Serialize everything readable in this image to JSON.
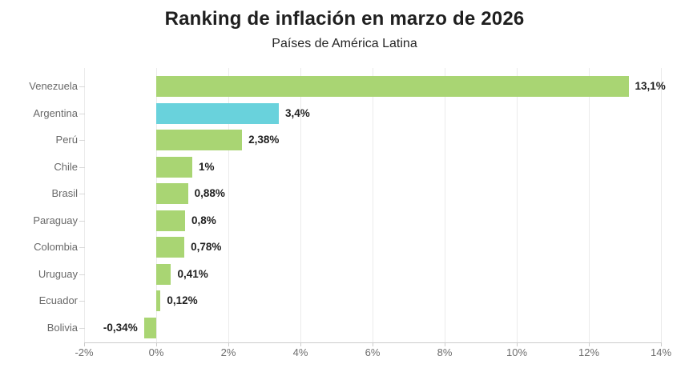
{
  "chart_data": {
    "type": "bar",
    "orientation": "horizontal",
    "title": "Ranking de inflación en marzo de 2026",
    "subtitle": "Países de América Latina",
    "categories": [
      "Venezuela",
      "Argentina",
      "Perú",
      "Chile",
      "Brasil",
      "Paraguay",
      "Colombia",
      "Uruguay",
      "Ecuador",
      "Bolivia"
    ],
    "values": [
      13.1,
      3.4,
      2.38,
      1,
      0.88,
      0.8,
      0.78,
      0.41,
      0.12,
      -0.34
    ],
    "value_labels": [
      "13,1%",
      "3,4%",
      "2,38%",
      "1%",
      "0,88%",
      "0,8%",
      "0,78%",
      "0,41%",
      "0,12%",
      "-0,34%"
    ],
    "highlighted_category": "Argentina",
    "xlabel": "",
    "ylabel": "",
    "xlim": [
      -2,
      14
    ],
    "x_ticks": [
      {
        "value": -2,
        "label": "-2%"
      },
      {
        "value": 0,
        "label": "0%"
      },
      {
        "value": 2,
        "label": "2%"
      },
      {
        "value": 4,
        "label": "4%"
      },
      {
        "value": 6,
        "label": "6%"
      },
      {
        "value": 8,
        "label": "8%"
      },
      {
        "value": 10,
        "label": "10%"
      },
      {
        "value": 12,
        "label": "12%"
      },
      {
        "value": 14,
        "label": "14%"
      }
    ],
    "grid": true,
    "legend": "none"
  },
  "colors": {
    "background": "#ffffff",
    "bar_default": "#a9d573",
    "bar_highlight": "#69d2dc",
    "title": "#1f1f1f",
    "subtitle": "#262626",
    "category_label": "#696969",
    "value_label": "#1f1f1f",
    "tick_label": "#6e6e6e",
    "gridline": "#ebebeb",
    "axis_line": "#cccccc"
  }
}
